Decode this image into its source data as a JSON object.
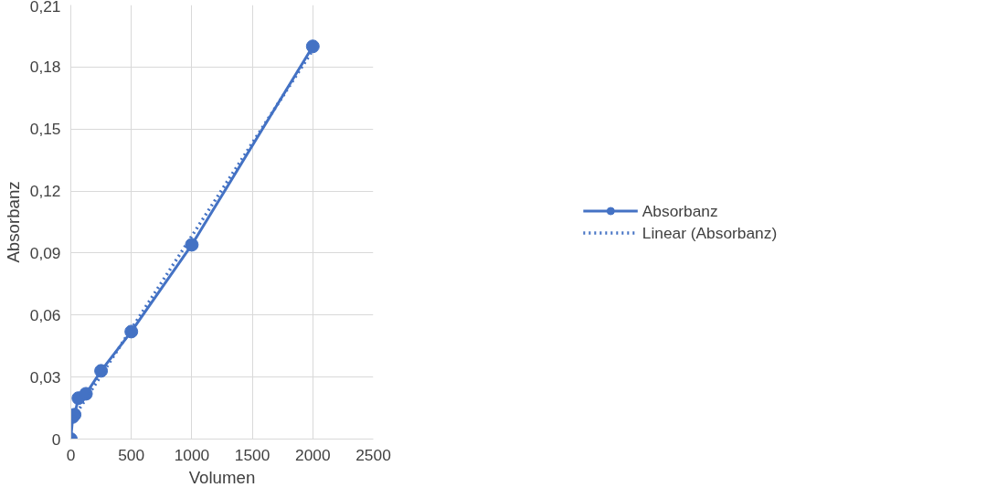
{
  "chart_data": {
    "type": "line",
    "xlabel": "Volumen",
    "ylabel": "Absorbanz",
    "xlim": [
      0,
      2500
    ],
    "xticks": [
      0,
      500,
      1000,
      1500,
      2000,
      2500
    ],
    "ylim": [
      0,
      0.21
    ],
    "yticks": [
      {
        "value": 0,
        "label": "0"
      },
      {
        "value": 0.03,
        "label": "0,03"
      },
      {
        "value": 0.06,
        "label": "0,06"
      },
      {
        "value": 0.09,
        "label": "0,09"
      },
      {
        "value": 0.12,
        "label": "0,12"
      },
      {
        "value": 0.15,
        "label": "0,15"
      },
      {
        "value": 0.18,
        "label": "0,18"
      },
      {
        "value": 0.21,
        "label": "0,21"
      }
    ],
    "grid": true,
    "legend": "right",
    "series": [
      {
        "name": "Absorbanz",
        "color": "#4472c4",
        "marker": "circle",
        "line_style": "solid",
        "x": [
          0,
          15.625,
          31.25,
          62.5,
          125,
          250,
          500,
          1000,
          2000
        ],
        "values": [
          0,
          0.0107,
          0.0118,
          0.0198,
          0.0219,
          0.033,
          0.052,
          0.094,
          0.19
        ]
      },
      {
        "name": "Linear (Absorbanz)",
        "color": "#4472c4",
        "marker": "none",
        "line_style": "dotted",
        "x": [
          0,
          2000
        ],
        "values": [
          0.0083,
          0.1882
        ]
      }
    ]
  }
}
